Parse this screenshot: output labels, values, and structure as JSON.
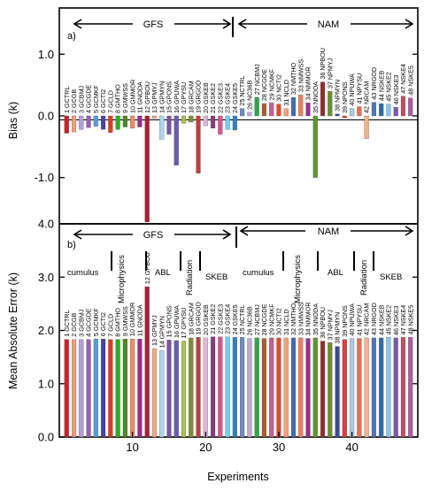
{
  "chart_data": [
    {
      "type": "bar",
      "panel_label": "a)",
      "ylabel": "Bias (k)",
      "ylim": [
        -1.75,
        1.75
      ],
      "yticks": [
        -1.0,
        0.0,
        1.0
      ],
      "ytick_labels": [
        "-1.0",
        "0.0",
        "1.0"
      ],
      "group_labels": [
        "GFS",
        "NAM"
      ],
      "values": [
        -0.28,
        -0.26,
        -0.22,
        -0.19,
        -0.17,
        -0.22,
        -0.27,
        -0.22,
        -0.18,
        -0.2,
        -0.18,
        -1.72,
        -0.04,
        -0.38,
        -0.3,
        -0.8,
        -0.12,
        -0.1,
        -0.93,
        -0.16,
        -0.2,
        -0.3,
        -0.22,
        -0.23,
        0.12,
        0.06,
        0.3,
        0.2,
        0.21,
        0.19,
        0.12,
        0.3,
        0.34,
        0.21,
        -1.0,
        0.55,
        0.4,
        0.03,
        -0.03,
        0.12,
        0.15,
        -0.37,
        0.22,
        0.2,
        0.19,
        0.14,
        0.32,
        0.29
      ]
    },
    {
      "type": "bar",
      "panel_label": "b)",
      "ylabel": "Mean Absolute Error (k)",
      "xlabel": "Experiments",
      "ylim": [
        0.0,
        4.0
      ],
      "yticks": [
        0.0,
        1.0,
        2.0,
        3.0,
        4.0
      ],
      "ytick_labels": [
        "0.0",
        "1.0",
        "2.0",
        "3.0",
        "4.0"
      ],
      "xticks": [
        10,
        20,
        30,
        40
      ],
      "xtick_labels": [
        "10",
        "20",
        "30",
        "40"
      ],
      "group_labels": [
        "GFS",
        "NAM"
      ],
      "category_labels": [
        "cumulus",
        "Microphysics",
        "ABL",
        "Radiation",
        "SKEB",
        "cumulus",
        "Microphysics",
        "ABL",
        "Radiation",
        "SKEB"
      ],
      "values": [
        1.83,
        1.83,
        1.83,
        1.83,
        1.84,
        1.84,
        1.83,
        1.83,
        1.84,
        1.84,
        1.84,
        2.82,
        1.66,
        1.62,
        1.82,
        1.81,
        1.8,
        1.86,
        1.87,
        1.86,
        1.88,
        1.88,
        1.88,
        1.87,
        1.87,
        1.85,
        1.86,
        1.85,
        1.86,
        1.86,
        1.86,
        1.86,
        1.86,
        1.85,
        1.86,
        1.8,
        1.77,
        1.7,
        1.83,
        1.85,
        1.85,
        1.86,
        1.86,
        1.86,
        1.87,
        1.86,
        1.87,
        1.87
      ]
    }
  ],
  "experiments": [
    "1 GCTRL",
    "2 GCGB",
    "3 GCBMJ",
    "4 GCGDE",
    "5 GCMKF",
    "6 GCTI2",
    "7 GCLD",
    "8 GMTHO",
    "9 GMWSS",
    "10 GMMOR",
    "11 GNODA",
    "12 GPBOU",
    "13 GPMYJ",
    "14 GPMYN",
    "15 GPONS",
    "16 GPUWA",
    "17 GPYSU",
    "18 GRCAM",
    "19 GRGOD",
    "20 GSKEB",
    "21 GSKE2",
    "22 GSKE3",
    "23 GSKE4",
    "24 GSKE5",
    "25 NCTRL",
    "26 NC36B",
    "27 NCBMJ",
    "28 NCGDE",
    "29 NCMKF",
    "30 NCTI2",
    "31 NCLD",
    "32 NMTHO",
    "33 NMWSS",
    "34 NMMOR",
    "35 NNODA",
    "36 NPBOU",
    "37 NPMYJ",
    "38 NPMYN",
    "39 NPONS",
    "40 NPUWA",
    "41 NPYSU",
    "42 NRCAM",
    "43 NRGOD",
    "44 NSKEB",
    "45 NSKE2",
    "46 NSKE3",
    "47 NSKE4",
    "48 NSKE5"
  ],
  "colors": [
    "#d41f22",
    "#f0a07a",
    "#aca0d6",
    "#9a5fb0",
    "#50a0dc",
    "#4545a8",
    "#df3b22",
    "#28b020",
    "#4f8a1e",
    "#f08c5f",
    "#9a2a92",
    "#b01c30",
    "#f2ab82",
    "#aad6f0",
    "#7e52a8",
    "#6a5ab3",
    "#a8c34f",
    "#7c8f2f",
    "#c23e3e",
    "#dcb9db",
    "#8a3b82",
    "#d6558c",
    "#6dcff0",
    "#2f82c2",
    "#6e8cc6",
    "#c2a7d3",
    "#2aa84a",
    "#b35a2a",
    "#c85c8e",
    "#e54b2a",
    "#f5a07a",
    "#3f6cbf",
    "#ef7f5a",
    "#9a2e8e",
    "#5a9a2a",
    "#9d2a2a",
    "#6a8f2a",
    "#3a4aa0",
    "#e33a3a",
    "#a7cde3",
    "#f06a4a",
    "#f5b08a",
    "#5078b6",
    "#2e6ea8",
    "#87c9e5",
    "#7b5aa8",
    "#c84a60",
    "#b05aa0"
  ]
}
